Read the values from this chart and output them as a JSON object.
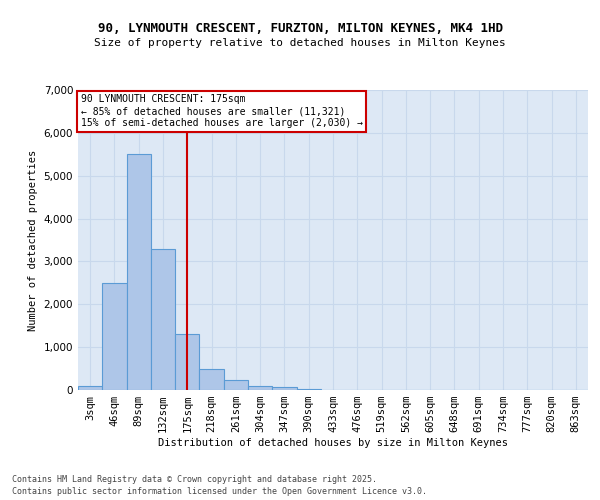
{
  "title1": "90, LYNMOUTH CRESCENT, FURZTON, MILTON KEYNES, MK4 1HD",
  "title2": "Size of property relative to detached houses in Milton Keynes",
  "xlabel": "Distribution of detached houses by size in Milton Keynes",
  "ylabel": "Number of detached properties",
  "categories": [
    "3sqm",
    "46sqm",
    "89sqm",
    "132sqm",
    "175sqm",
    "218sqm",
    "261sqm",
    "304sqm",
    "347sqm",
    "390sqm",
    "433sqm",
    "476sqm",
    "519sqm",
    "562sqm",
    "605sqm",
    "648sqm",
    "691sqm",
    "734sqm",
    "777sqm",
    "820sqm",
    "863sqm"
  ],
  "values": [
    100,
    2500,
    5500,
    3300,
    1300,
    500,
    230,
    90,
    60,
    30,
    0,
    0,
    0,
    0,
    0,
    0,
    0,
    0,
    0,
    0,
    0
  ],
  "bar_color": "#aec6e8",
  "bar_edge_color": "#5b9bd5",
  "vline_x_idx": 4,
  "vline_color": "#cc0000",
  "annotation_text": "90 LYNMOUTH CRESCENT: 175sqm\n← 85% of detached houses are smaller (11,321)\n15% of semi-detached houses are larger (2,030) →",
  "annotation_box_color": "#cc0000",
  "ylim": [
    0,
    7000
  ],
  "yticks": [
    0,
    1000,
    2000,
    3000,
    4000,
    5000,
    6000,
    7000
  ],
  "grid_color": "#c8d8ec",
  "background_color": "#dde8f5",
  "footer1": "Contains HM Land Registry data © Crown copyright and database right 2025.",
  "footer2": "Contains public sector information licensed under the Open Government Licence v3.0."
}
